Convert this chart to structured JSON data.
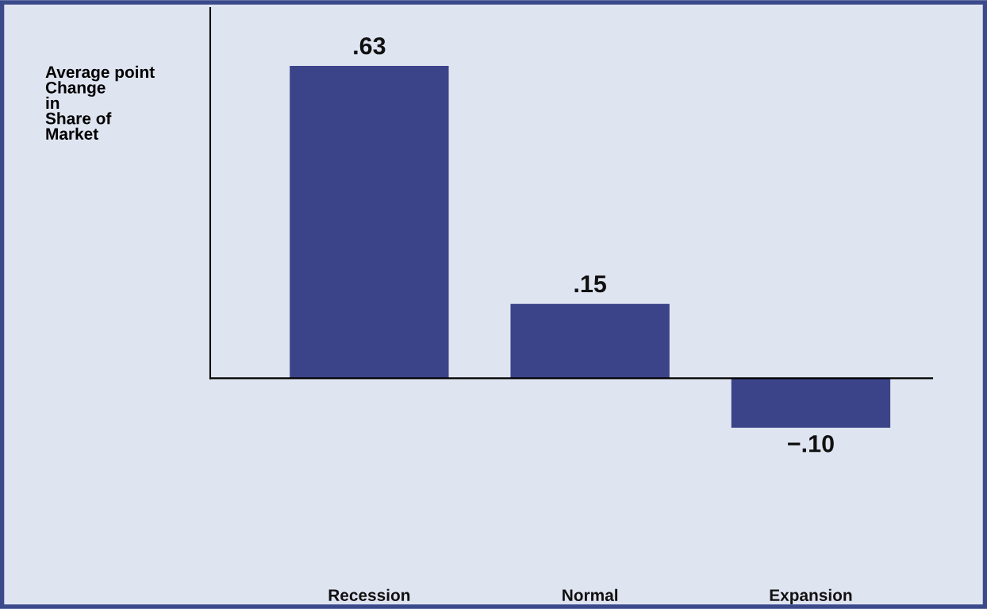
{
  "chart_data": {
    "type": "bar",
    "ylabel": "Average point\nChange\nin\nShare of\nMarket",
    "categories": [
      "Recession",
      "Normal",
      "Expansion"
    ],
    "values": [
      0.63,
      0.15,
      -0.1
    ],
    "value_labels": [
      ".63",
      ".15",
      "−.10"
    ],
    "color": "#3c4489",
    "legend": false
  }
}
